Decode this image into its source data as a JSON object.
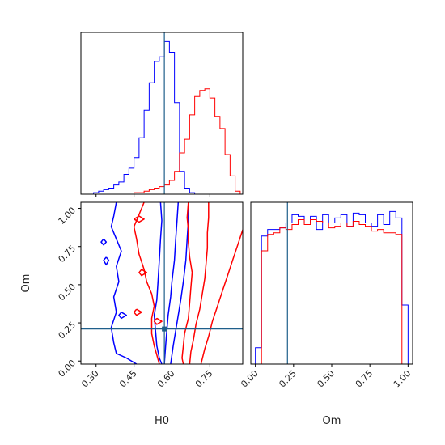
{
  "chart_data": {
    "type": "corner",
    "parameters": [
      "H0",
      "Om"
    ],
    "truths": {
      "H0": 0.57,
      "Om": 0.21
    },
    "colors": {
      "series_a": "#0000ff",
      "series_b": "#ff0000",
      "truth": "#1f5f8b"
    },
    "panels": [
      {
        "id": "H0-marginal",
        "type": "step-histogram",
        "parameter": "H0",
        "xlim": [
          0.24,
          0.88
        ],
        "bins": [
          0.25,
          0.27,
          0.29,
          0.31,
          0.33,
          0.35,
          0.37,
          0.39,
          0.41,
          0.43,
          0.45,
          0.47,
          0.49,
          0.51,
          0.53,
          0.55,
          0.57,
          0.59,
          0.61,
          0.63,
          0.65,
          0.67,
          0.69,
          0.71,
          0.73,
          0.75,
          0.77,
          0.79,
          0.81,
          0.83,
          0.85,
          0.87
        ],
        "series": [
          {
            "values": [
              0,
              0,
              1,
              2,
              3,
              4,
              6,
              8,
              13,
              17,
              24,
              37,
              55,
              73,
              87,
              90,
              100,
              93,
              60,
              15,
              4,
              1,
              0,
              0,
              0,
              0,
              0,
              0,
              0,
              0,
              0
            ]
          },
          {
            "values": [
              0,
              0,
              0,
              0,
              0,
              0,
              0,
              0,
              0,
              0,
              1,
              1,
              2,
              3,
              4,
              5,
              6,
              9,
              15,
              27,
              36,
              52,
              64,
              68,
              69,
              63,
              51,
              43,
              26,
              12,
              2
            ]
          }
        ]
      },
      {
        "id": "Om-marginal",
        "type": "step-histogram",
        "parameter": "Om",
        "xlim": [
          -0.03,
          1.03
        ],
        "bins": [
          0.0,
          0.04,
          0.08,
          0.12,
          0.16,
          0.2,
          0.24,
          0.28,
          0.32,
          0.36,
          0.4,
          0.44,
          0.48,
          0.52,
          0.56,
          0.6,
          0.64,
          0.68,
          0.72,
          0.76,
          0.8,
          0.84,
          0.88,
          0.92,
          0.96,
          1.0
        ],
        "series": [
          {
            "values": [
              10,
              78,
              82,
              82,
              83,
              86,
              91,
              90,
              86,
              90,
              82,
              91,
              86,
              89,
              91,
              84,
              92,
              91,
              86,
              84,
              91,
              85,
              93,
              89,
              36
            ]
          },
          {
            "values": [
              0,
              69,
              79,
              80,
              83,
              82,
              85,
              88,
              85,
              88,
              87,
              86,
              83,
              84,
              86,
              84,
              87,
              85,
              84,
              81,
              82,
              80,
              80,
              79,
              0
            ]
          }
        ]
      },
      {
        "id": "H0-Om-joint",
        "type": "contour",
        "xlabel": "H0",
        "ylabel": "Om",
        "xlim": [
          0.24,
          0.88
        ],
        "ylim": [
          -0.02,
          1.04
        ],
        "xticks": [
          "0.30",
          "0.45",
          "0.60",
          "0.75"
        ],
        "xtick_values": [
          0.3,
          0.45,
          0.6,
          0.75
        ],
        "yticks": [
          "0.00",
          "0.25",
          "0.50",
          "0.75",
          "1.00"
        ],
        "ytick_values": [
          0.0,
          0.25,
          0.5,
          0.75,
          1.0
        ],
        "series": [
          {
            "contours": [
              [
                [
                  0.38,
                  1.04
                ],
                [
                  0.37,
                  0.95
                ],
                [
                  0.36,
                  0.88
                ],
                [
                  0.38,
                  0.8
                ],
                [
                  0.4,
                  0.72
                ],
                [
                  0.38,
                  0.62
                ],
                [
                  0.39,
                  0.52
                ],
                [
                  0.37,
                  0.42
                ],
                [
                  0.38,
                  0.32
                ],
                [
                  0.36,
                  0.22
                ],
                [
                  0.37,
                  0.12
                ],
                [
                  0.38,
                  0.05
                ],
                [
                  0.42,
                  0.02
                ],
                [
                  0.46,
                  -0.02
                ]
              ],
              [
                [
                  0.555,
                  1.04
                ],
                [
                  0.56,
                  0.92
                ],
                [
                  0.555,
                  0.8
                ],
                [
                  0.55,
                  0.66
                ],
                [
                  0.545,
                  0.52
                ],
                [
                  0.54,
                  0.4
                ],
                [
                  0.53,
                  0.3
                ],
                [
                  0.535,
                  0.2
                ],
                [
                  0.54,
                  0.1
                ],
                [
                  0.55,
                  0.02
                ],
                [
                  0.56,
                  -0.02
                ]
              ],
              [
                [
                  0.625,
                  1.04
                ],
                [
                  0.62,
                  0.92
                ],
                [
                  0.615,
                  0.8
                ],
                [
                  0.61,
                  0.66
                ],
                [
                  0.6,
                  0.52
                ],
                [
                  0.595,
                  0.42
                ],
                [
                  0.585,
                  0.3
                ],
                [
                  0.58,
                  0.2
                ],
                [
                  0.575,
                  0.1
                ],
                [
                  0.57,
                  -0.02
                ]
              ],
              [
                [
                  0.665,
                  1.04
                ],
                [
                  0.665,
                  0.92
                ],
                [
                  0.66,
                  0.8
                ],
                [
                  0.655,
                  0.66
                ],
                [
                  0.645,
                  0.52
                ],
                [
                  0.635,
                  0.4
                ],
                [
                  0.625,
                  0.3
                ],
                [
                  0.615,
                  0.2
                ],
                [
                  0.605,
                  0.1
                ],
                [
                  0.595,
                  -0.02
                ]
              ],
              [
                [
                  0.33,
                  0.8
                ],
                [
                  0.32,
                  0.78
                ],
                [
                  0.33,
                  0.76
                ],
                [
                  0.34,
                  0.78
                ],
                [
                  0.33,
                  0.8
                ]
              ],
              [
                [
                  0.34,
                  0.68
                ],
                [
                  0.33,
                  0.66
                ],
                [
                  0.34,
                  0.63
                ],
                [
                  0.35,
                  0.66
                ],
                [
                  0.34,
                  0.68
                ]
              ],
              [
                [
                  0.4,
                  0.32
                ],
                [
                  0.39,
                  0.3
                ],
                [
                  0.4,
                  0.28
                ],
                [
                  0.42,
                  0.3
                ],
                [
                  0.4,
                  0.32
                ]
              ]
            ]
          },
          {
            "contours": [
              [
                [
                  0.49,
                  1.04
                ],
                [
                  0.47,
                  0.96
                ],
                [
                  0.45,
                  0.88
                ],
                [
                  0.46,
                  0.8
                ],
                [
                  0.47,
                  0.7
                ],
                [
                  0.49,
                  0.6
                ],
                [
                  0.5,
                  0.52
                ],
                [
                  0.52,
                  0.44
                ],
                [
                  0.53,
                  0.36
                ],
                [
                  0.52,
                  0.28
                ],
                [
                  0.52,
                  0.18
                ],
                [
                  0.53,
                  0.1
                ],
                [
                  0.54,
                  0.04
                ],
                [
                  0.55,
                  -0.02
                ]
              ],
              [
                [
                  0.665,
                  1.04
                ],
                [
                  0.66,
                  0.94
                ],
                [
                  0.665,
                  0.86
                ],
                [
                  0.665,
                  0.78
                ],
                [
                  0.67,
                  0.68
                ],
                [
                  0.68,
                  0.58
                ],
                [
                  0.675,
                  0.48
                ],
                [
                  0.67,
                  0.38
                ],
                [
                  0.665,
                  0.28
                ],
                [
                  0.65,
                  0.18
                ],
                [
                  0.645,
                  0.1
                ],
                [
                  0.64,
                  0.02
                ],
                [
                  0.645,
                  -0.02
                ]
              ],
              [
                [
                  0.745,
                  1.04
                ],
                [
                  0.745,
                  0.94
                ],
                [
                  0.74,
                  0.84
                ],
                [
                  0.74,
                  0.74
                ],
                [
                  0.735,
                  0.64
                ],
                [
                  0.73,
                  0.54
                ],
                [
                  0.72,
                  0.44
                ],
                [
                  0.71,
                  0.34
                ],
                [
                  0.695,
                  0.24
                ],
                [
                  0.685,
                  0.14
                ],
                [
                  0.675,
                  0.06
                ],
                [
                  0.67,
                  -0.02
                ]
              ],
              [
                [
                  0.88,
                  0.86
                ],
                [
                  0.86,
                  0.76
                ],
                [
                  0.84,
                  0.66
                ],
                [
                  0.82,
                  0.56
                ],
                [
                  0.8,
                  0.46
                ],
                [
                  0.78,
                  0.36
                ],
                [
                  0.76,
                  0.26
                ],
                [
                  0.745,
                  0.16
                ],
                [
                  0.73,
                  0.08
                ],
                [
                  0.715,
                  -0.02
                ]
              ],
              [
                [
                  0.45,
                  0.93
                ],
                [
                  0.47,
                  0.95
                ],
                [
                  0.49,
                  0.93
                ],
                [
                  0.47,
                  0.91
                ],
                [
                  0.45,
                  0.93
                ]
              ],
              [
                [
                  0.48,
                  0.6
                ],
                [
                  0.47,
                  0.58
                ],
                [
                  0.48,
                  0.56
                ],
                [
                  0.5,
                  0.58
                ],
                [
                  0.48,
                  0.6
                ]
              ],
              [
                [
                  0.46,
                  0.34
                ],
                [
                  0.45,
                  0.32
                ],
                [
                  0.46,
                  0.3
                ],
                [
                  0.48,
                  0.32
                ],
                [
                  0.46,
                  0.34
                ]
              ],
              [
                [
                  0.54,
                  0.28
                ],
                [
                  0.53,
                  0.26
                ],
                [
                  0.54,
                  0.24
                ],
                [
                  0.56,
                  0.26
                ],
                [
                  0.54,
                  0.28
                ]
              ]
            ]
          }
        ]
      }
    ],
    "om_marginal_xlabel": "Om",
    "om_marginal_xticks": [
      "0.00",
      "0.25",
      "0.50",
      "0.75",
      "1.00"
    ],
    "om_marginal_xtick_values": [
      0.0,
      0.25,
      0.5,
      0.75,
      1.0
    ]
  }
}
